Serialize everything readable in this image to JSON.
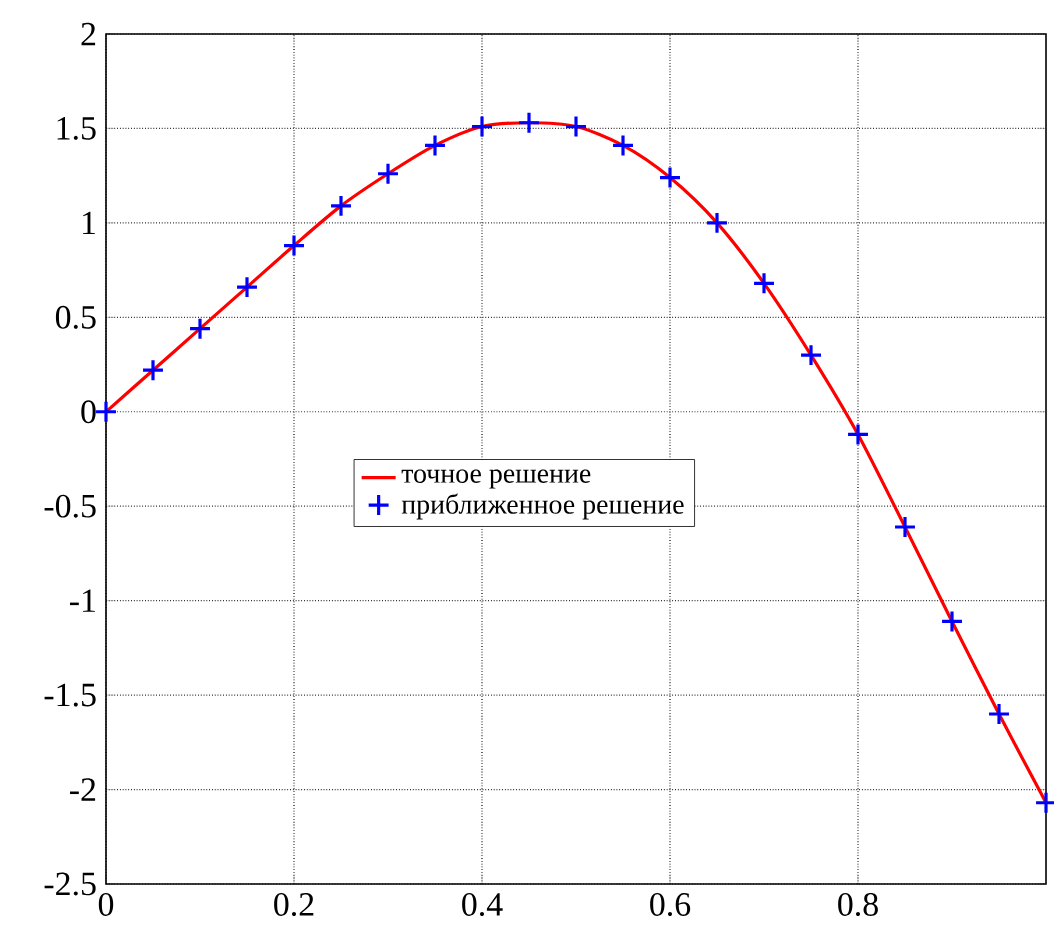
{
  "chart_data": {
    "type": "line",
    "x": [
      0,
      0.05,
      0.1,
      0.15,
      0.2,
      0.25,
      0.3,
      0.35,
      0.4,
      0.45,
      0.5,
      0.55,
      0.6,
      0.65,
      0.7,
      0.75,
      0.8,
      0.85,
      0.9,
      0.95,
      1.0
    ],
    "series": [
      {
        "name": "точное решение",
        "color": "#ff0000",
        "marker": "none",
        "values": [
          0,
          0.22,
          0.44,
          0.66,
          0.88,
          1.09,
          1.26,
          1.41,
          1.51,
          1.53,
          1.51,
          1.41,
          1.24,
          1.0,
          0.68,
          0.3,
          -0.12,
          -0.61,
          -1.11,
          -1.6,
          -2.07
        ]
      },
      {
        "name": "приближенное решение",
        "type": "scatter",
        "color": "#0000ff",
        "marker": "cross",
        "values": [
          0,
          0.22,
          0.44,
          0.66,
          0.88,
          1.09,
          1.26,
          1.41,
          1.51,
          1.53,
          1.51,
          1.41,
          1.24,
          1.0,
          0.68,
          0.3,
          -0.12,
          -0.61,
          -1.11,
          -1.6,
          -2.07
        ]
      }
    ],
    "xlim": [
      0,
      1
    ],
    "ylim": [
      -2.5,
      2
    ],
    "xticks": [
      0,
      0.2,
      0.4,
      0.6,
      0.8
    ],
    "yticks": [
      -2.5,
      -2,
      -1.5,
      -1,
      -0.5,
      0,
      0.5,
      1,
      1.5,
      2
    ],
    "grid": true,
    "legend": "center"
  }
}
